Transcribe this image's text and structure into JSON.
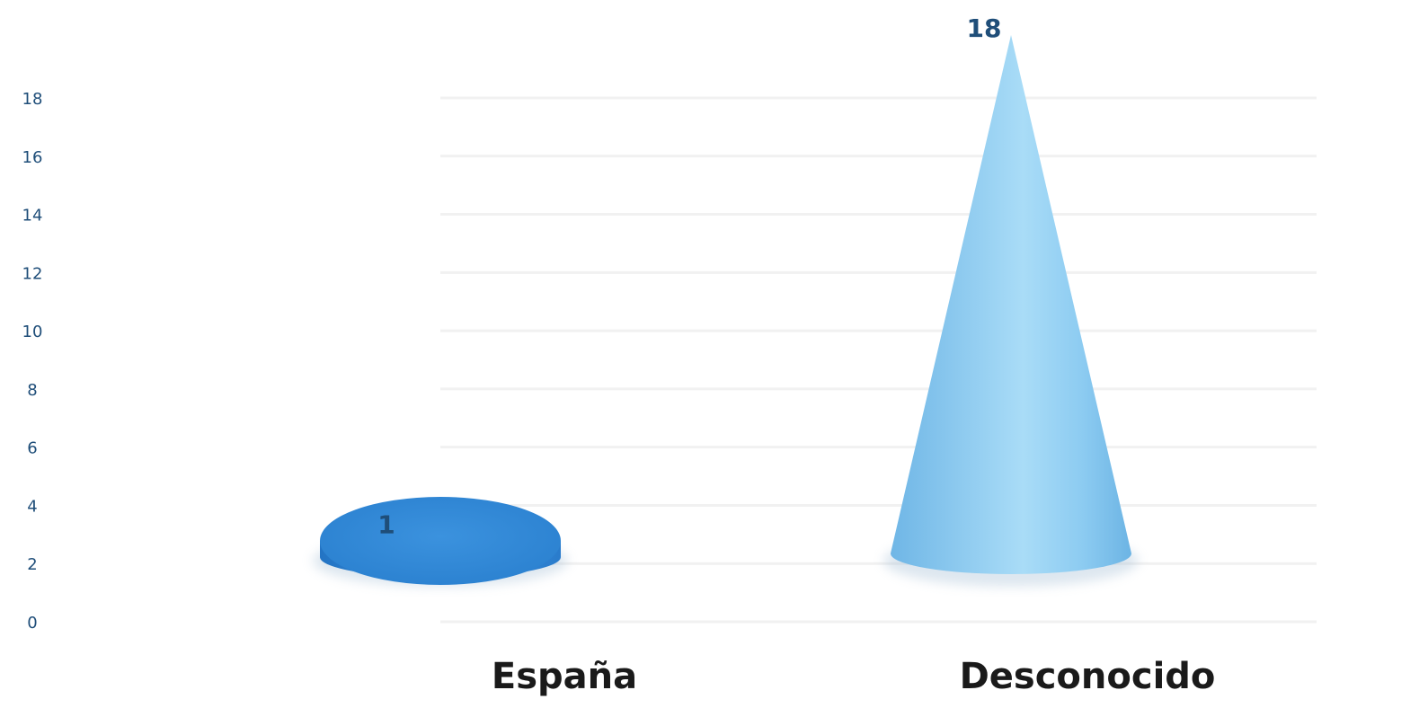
{
  "chart_data": {
    "type": "bar",
    "style": "3d-cone",
    "title": "",
    "xlabel": "",
    "ylabel": "",
    "categories": [
      "España",
      "Desconocido"
    ],
    "values": [
      1,
      18
    ],
    "data_labels": [
      "1",
      "18"
    ],
    "ylim": [
      0,
      18
    ],
    "y_ticks": [
      0,
      2,
      4,
      6,
      8,
      10,
      12,
      14,
      16,
      18
    ],
    "y_tick_labels": [
      "0",
      "2",
      "4",
      "6",
      "8",
      "10",
      "12",
      "14",
      "16",
      "18"
    ],
    "grid": true,
    "legend": "none",
    "colors": {
      "bar_1": "#2e86d6",
      "bar_2": "#7ec3ee",
      "labels": "#1f4e79",
      "categories": "#1a1a1a"
    }
  }
}
